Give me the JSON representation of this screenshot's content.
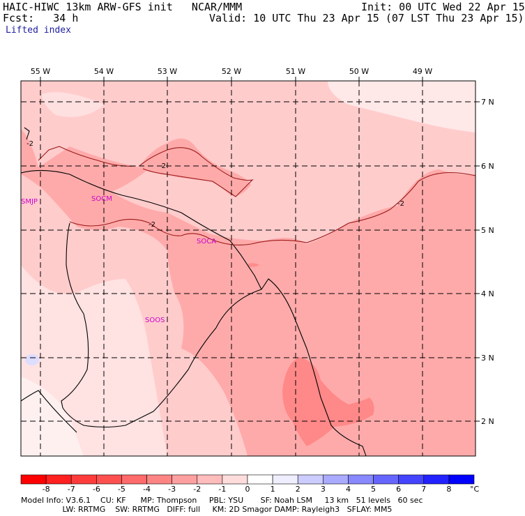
{
  "header": {
    "model_line": "HAIC-HIWC 13km ARW-GFS init   NCAR/MMM",
    "fcst_line": "Fcst:   34 h",
    "field_name": "Lifted index",
    "init_line": "Init: 00 UTC Wed 22 Apr 15",
    "valid_line": "Valid: 10 UTC Thu 23 Apr 15 (07 LST Thu 23 Apr 15)"
  },
  "map": {
    "lon_labels": [
      "55 W",
      "54 W",
      "53 W",
      "52 W",
      "51 W",
      "50 W",
      "49 W"
    ],
    "lat_labels": [
      "7 N",
      "6 N",
      "5 N",
      "4 N",
      "3 N",
      "2 N"
    ],
    "stations": [
      "SMJP",
      "SOCM",
      "SOCA",
      "SOOS"
    ],
    "contour_labels": [
      "-2",
      "-2",
      "-2",
      "-2"
    ]
  },
  "colorbar": {
    "labels": [
      "-8",
      "-7",
      "-6",
      "-5",
      "-4",
      "-3",
      "-2",
      "-1",
      "0",
      "1",
      "2",
      "3",
      "4",
      "5",
      "6",
      "7",
      "8"
    ],
    "unit": "°C",
    "colors": [
      "#ff0000",
      "#ff2020",
      "#ff3c3c",
      "#ff5050",
      "#ff6a6a",
      "#ff8585",
      "#ffa0a0",
      "#ffbcbc",
      "#ffdcdc",
      "#ffffff",
      "#eeeeff",
      "#ccccff",
      "#aaaaff",
      "#8888ff",
      "#6666ff",
      "#4444ff",
      "#2222ff",
      "#0000ff"
    ]
  },
  "footer": {
    "line1": "Model Info: V3.6.1    CU: KF      MP: Thompson     PBL: YSU       SF: Noah LSM     13 km   51 levels   60 sec",
    "line2": "                 LW: RRTMG    SW: RRTMG   DIFF: full     KM: 2D Smagor DAMP: Rayleigh3   SFLAY: MM5"
  }
}
